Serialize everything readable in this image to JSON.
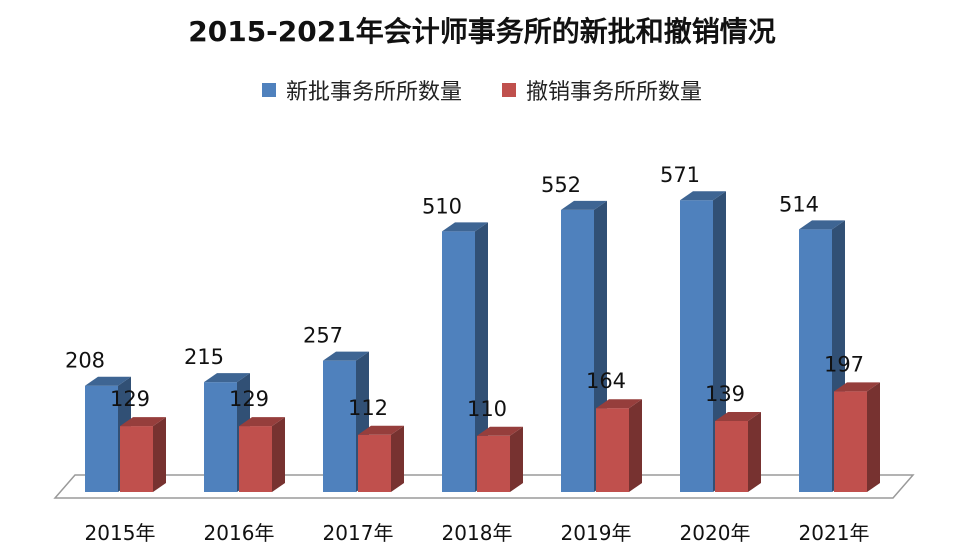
{
  "chart_data": {
    "type": "bar",
    "title": "2015-2021年会计师事务所的新批和撤销情况",
    "categories": [
      "2015年",
      "2016年",
      "2017年",
      "2018年",
      "2019年",
      "2020年",
      "2021年"
    ],
    "series": [
      {
        "name": "新批事务所所数量",
        "values": [
          208,
          215,
          257,
          510,
          552,
          571,
          514
        ],
        "color": "#4F81BD"
      },
      {
        "name": "撤销事务所所数量",
        "values": [
          129,
          129,
          112,
          110,
          164,
          139,
          197
        ],
        "color": "#C0504D"
      }
    ],
    "xlabel": "",
    "ylabel": "",
    "ylim": [
      0,
      600
    ],
    "legend": "top",
    "grid": false,
    "style": "3d-column"
  }
}
